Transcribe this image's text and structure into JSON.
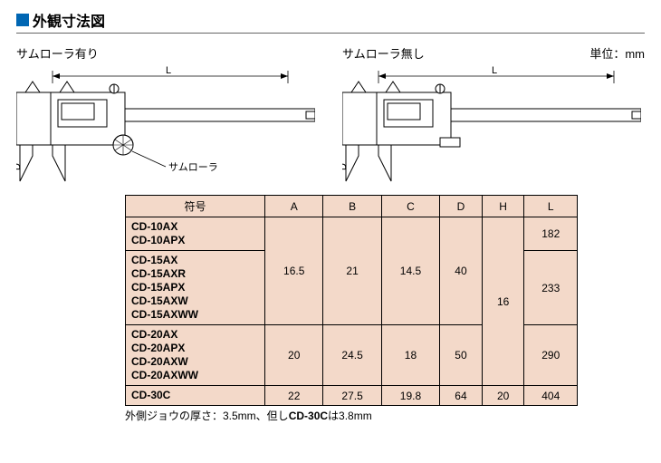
{
  "title": "外観寸法図",
  "unit_label": "単位：mm",
  "diagrams": {
    "with_roller": {
      "label": "サムローラ有り",
      "annotation": "サムローラ",
      "dim_L": "L",
      "dim_D": "D"
    },
    "without_roller": {
      "label": "サムローラ無し",
      "dim_L": "L",
      "dim_D": "D"
    }
  },
  "table": {
    "header_symbol": "符号",
    "columns": [
      "A",
      "B",
      "C",
      "D",
      "H",
      "L"
    ],
    "groups": [
      {
        "models": [
          "CD-10AX",
          "CD-10APX"
        ]
      },
      {
        "models": [
          "CD-15AX",
          "CD-15AXR",
          "CD-15APX",
          "CD-15AXW",
          "CD-15AXWW"
        ]
      },
      {
        "models": [
          "CD-20AX",
          "CD-20APX",
          "CD-20AXW",
          "CD-20AXWW"
        ]
      },
      {
        "models": [
          "CD-30C"
        ]
      }
    ],
    "merged": {
      "A": [
        {
          "span": 2,
          "value": "16.5"
        },
        {
          "span": 1,
          "value": "20"
        },
        {
          "span": 1,
          "value": "22"
        }
      ],
      "B": [
        {
          "span": 2,
          "value": "21"
        },
        {
          "span": 1,
          "value": "24.5"
        },
        {
          "span": 1,
          "value": "27.5"
        }
      ],
      "C": [
        {
          "span": 2,
          "value": "14.5"
        },
        {
          "span": 1,
          "value": "18"
        },
        {
          "span": 1,
          "value": "19.8"
        }
      ],
      "D": [
        {
          "span": 2,
          "value": "40"
        },
        {
          "span": 1,
          "value": "50"
        },
        {
          "span": 1,
          "value": "64"
        }
      ],
      "H": [
        {
          "span": 3,
          "value": "16"
        },
        {
          "span": 1,
          "value": "20"
        }
      ],
      "L": [
        {
          "span": 1,
          "value": "182"
        },
        {
          "span": 1,
          "value": "233"
        },
        {
          "span": 1,
          "value": "290"
        },
        {
          "span": 1,
          "value": "404"
        }
      ]
    }
  },
  "footnote": {
    "prefix": "外側ジョウの厚さ：3.5mm、但し",
    "bold": "CD-30C",
    "suffix": "は3.8mm"
  },
  "colors": {
    "title_square": "#0066b3",
    "table_bg": "#f3d9c9",
    "stroke": "#000000"
  }
}
